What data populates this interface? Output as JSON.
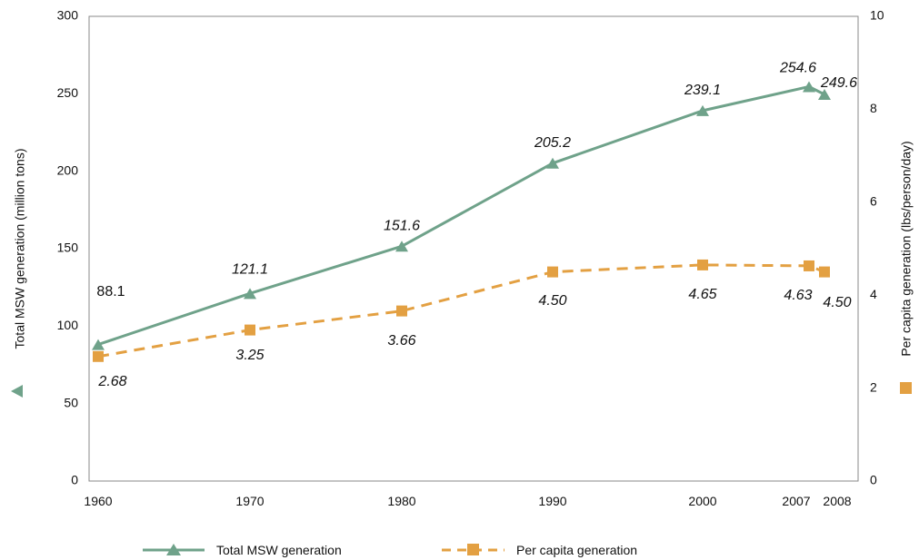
{
  "chart_data": {
    "type": "line",
    "title": "",
    "x": [
      "1960",
      "1970",
      "1980",
      "1990",
      "2000",
      "2007",
      "2008"
    ],
    "x_numeric": [
      1960,
      1970,
      1980,
      1990,
      2000,
      2007,
      2008
    ],
    "series": [
      {
        "name": "Total MSW generation",
        "axis": "left",
        "marker": "triangle",
        "color": "#6fa28a",
        "line_style": "solid",
        "values": [
          88.1,
          121.1,
          151.6,
          205.2,
          239.1,
          254.6,
          249.6
        ],
        "labels": [
          "88.1",
          "121.1",
          "151.6",
          "205.2",
          "239.1",
          "254.6",
          "249.6"
        ]
      },
      {
        "name": "Per capita generation",
        "axis": "right",
        "marker": "square",
        "color": "#e3a042",
        "line_style": "dashed",
        "values": [
          2.68,
          3.25,
          3.66,
          4.5,
          4.65,
          4.63,
          4.5
        ],
        "labels": [
          "2.68",
          "3.25",
          "3.66",
          "4.50",
          "4.65",
          "4.63",
          "4.50"
        ]
      }
    ],
    "y_left": {
      "label": "Total MSW generation (million tons)",
      "ylim": [
        0,
        300
      ],
      "ticks": [
        0,
        50,
        100,
        150,
        200,
        250,
        300
      ]
    },
    "y_right": {
      "label": "Per capita generation (lbs/person/day)",
      "ylim": [
        0,
        10
      ],
      "ticks": [
        0,
        2,
        4,
        6,
        8,
        10
      ]
    },
    "grid": false,
    "legend_position": "bottom"
  }
}
